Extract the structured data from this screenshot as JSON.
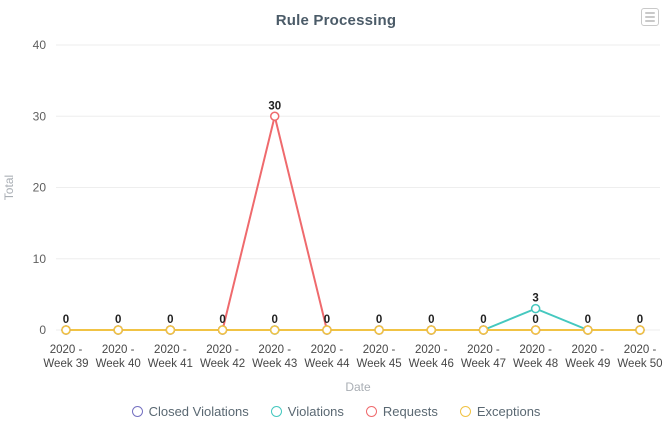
{
  "header": {
    "title": "Rule Processing",
    "toolbox_icon": "hamburger-menu-icon"
  },
  "chart_data": {
    "type": "line",
    "title": "Rule Processing",
    "xlabel": "Date",
    "ylabel": "Total",
    "ylim": [
      0,
      40
    ],
    "yticks": [
      0,
      10,
      20,
      30,
      40
    ],
    "grid": true,
    "legend_position": "bottom",
    "marker": "open-circle",
    "categories": [
      "2020 - Week 39",
      "2020 - Week 40",
      "2020 - Week 41",
      "2020 - Week 42",
      "2020 - Week 43",
      "2020 - Week 44",
      "2020 - Week 45",
      "2020 - Week 46",
      "2020 - Week 47",
      "2020 - Week 48",
      "2020 - Week 49",
      "2020 - Week 50"
    ],
    "series": [
      {
        "name": "Closed Violations",
        "color": "#7571c1",
        "values": [
          0,
          0,
          0,
          0,
          0,
          0,
          0,
          0,
          0,
          0,
          0,
          0
        ]
      },
      {
        "name": "Violations",
        "color": "#45c8bf",
        "values": [
          0,
          0,
          0,
          0,
          0,
          0,
          0,
          0,
          0,
          3,
          0,
          0
        ]
      },
      {
        "name": "Requests",
        "color": "#ef6a6d",
        "values": [
          0,
          0,
          0,
          0,
          30,
          0,
          0,
          0,
          0,
          0,
          0,
          0
        ]
      },
      {
        "name": "Exceptions",
        "color": "#f1c344",
        "values": [
          0,
          0,
          0,
          0,
          0,
          0,
          0,
          0,
          0,
          0,
          0,
          0
        ]
      }
    ],
    "colors": {
      "grid_line": "#eeeeee",
      "y_tick_label": "#5f5f5f",
      "x_tick_label": "#474747",
      "axis_name": "#a9aeb4",
      "data_label": "#222222",
      "legend_text": "#5a6872",
      "title_text": "#4b5b68"
    }
  }
}
